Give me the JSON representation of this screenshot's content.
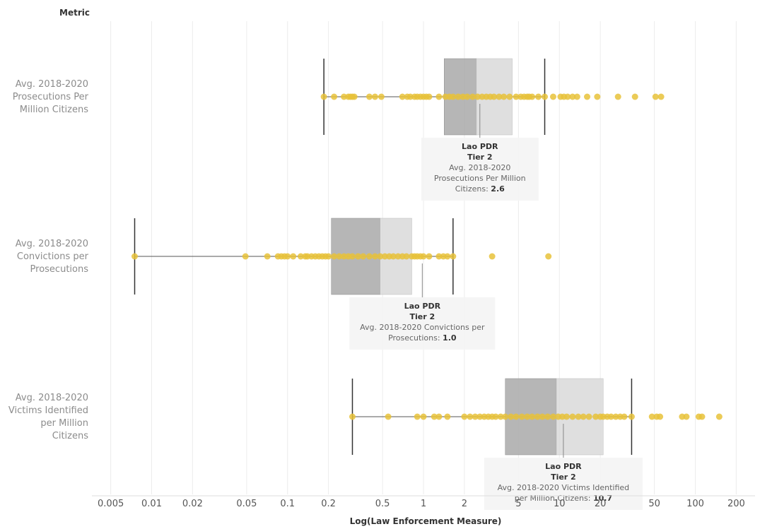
{
  "chart_data": {
    "type": "box",
    "title": "",
    "row_header": "Metric",
    "xlabel": "Log(Law Enforcement Measure)",
    "x_scale": "log",
    "xlim": [
      0.004,
      250
    ],
    "x_ticks": [
      0.005,
      0.01,
      0.02,
      0.05,
      0.1,
      0.2,
      0.5,
      1,
      2,
      5,
      10,
      20,
      50,
      100,
      200
    ],
    "x_tick_labels": [
      "0.005",
      "0.01",
      "0.02",
      "0.05",
      "0.1",
      "0.2",
      "0.5",
      "1",
      "2",
      "5",
      "10",
      "20",
      "50",
      "100",
      "200"
    ],
    "grid": "vertical",
    "colors": {
      "point": "#e8c23a",
      "box_lower": "#a9a9a9",
      "box_upper": "#d9d9d9",
      "whisker": "#333333",
      "grid": "#ececec"
    },
    "series": [
      {
        "name": "Avg. 2018-2020 Prosecutions Per Million Citizens",
        "label_lines": [
          "Avg. 2018-2020",
          "Prosecutions Per",
          "Million Citizens"
        ],
        "whisker_low": 0.185,
        "q1": 1.42,
        "median": 2.45,
        "q3": 4.5,
        "whisker_high": 7.8,
        "points": [
          0.185,
          0.22,
          0.26,
          0.28,
          0.29,
          0.3,
          0.31,
          0.4,
          0.44,
          0.49,
          0.7,
          0.76,
          0.8,
          0.86,
          0.9,
          0.95,
          1.0,
          1.05,
          1.1,
          1.3,
          1.45,
          1.55,
          1.65,
          1.8,
          1.95,
          2.1,
          2.3,
          2.5,
          2.7,
          2.9,
          3.1,
          3.3,
          3.6,
          3.9,
          4.3,
          4.8,
          5.2,
          5.5,
          5.8,
          6.0,
          6.3,
          7.0,
          7.8,
          9.0,
          10.2,
          10.8,
          11.5,
          12.5,
          13.5,
          16.0,
          19.0,
          27.0,
          36.0,
          51.0,
          56.0
        ],
        "highlight": {
          "value": 2.6,
          "lines": [
            "Lao PDR",
            "Tier 2",
            "Avg. 2018-2020",
            "Prosecutions Per Million",
            "Citizens: "
          ],
          "value_text": "2.6"
        }
      },
      {
        "name": "Avg. 2018-2020 Convictions per Prosecutions",
        "label_lines": [
          "Avg. 2018-2020",
          "Convictions per",
          "Prosecutions"
        ],
        "whisker_low": 0.0075,
        "q1": 0.21,
        "median": 0.48,
        "q3": 0.82,
        "whisker_high": 1.65,
        "points": [
          0.0075,
          0.049,
          0.071,
          0.085,
          0.09,
          0.095,
          0.1,
          0.11,
          0.125,
          0.135,
          0.14,
          0.15,
          0.16,
          0.17,
          0.18,
          0.19,
          0.2,
          0.22,
          0.24,
          0.26,
          0.28,
          0.3,
          0.33,
          0.36,
          0.4,
          0.44,
          0.48,
          0.52,
          0.56,
          0.6,
          0.65,
          0.7,
          0.75,
          0.82,
          0.86,
          0.9,
          0.95,
          1.0,
          1.1,
          1.3,
          1.4,
          1.5,
          1.65,
          3.2,
          8.3
        ],
        "highlight": {
          "value": 0.98,
          "lines": [
            "Lao PDR",
            "Tier 2",
            "Avg. 2018-2020 Convictions per",
            "Prosecutions: "
          ],
          "value_text": "1.0"
        }
      },
      {
        "name": "Avg. 2018-2020 Victims Identified per Million Citizens",
        "label_lines": [
          "Avg. 2018-2020",
          "Victims Identified",
          "per Million",
          "Citizens"
        ],
        "whisker_low": 0.3,
        "q1": 4.0,
        "median": 9.5,
        "q3": 21.0,
        "whisker_high": 34.0,
        "points": [
          0.3,
          0.55,
          0.9,
          1.0,
          1.2,
          1.3,
          1.5,
          2.0,
          2.2,
          2.4,
          2.6,
          2.8,
          3.0,
          3.2,
          3.4,
          3.7,
          4.0,
          4.4,
          4.8,
          5.3,
          5.8,
          6.3,
          6.9,
          7.5,
          8.2,
          9.0,
          9.8,
          10.5,
          11.3,
          12.5,
          13.8,
          15.0,
          16.5,
          18.5,
          20.0,
          21.0,
          22.5,
          24.0,
          26.0,
          28.0,
          30.0,
          34.0,
          48.0,
          52.0,
          55.0,
          80.0,
          86.0,
          106.0,
          112.0,
          150.0
        ],
        "highlight": {
          "value": 10.7,
          "lines": [
            "Lao PDR",
            "Tier 2",
            "Avg. 2018-2020 Victims Identified",
            "per Million Citizens: "
          ],
          "value_text": "10.7"
        }
      }
    ]
  }
}
